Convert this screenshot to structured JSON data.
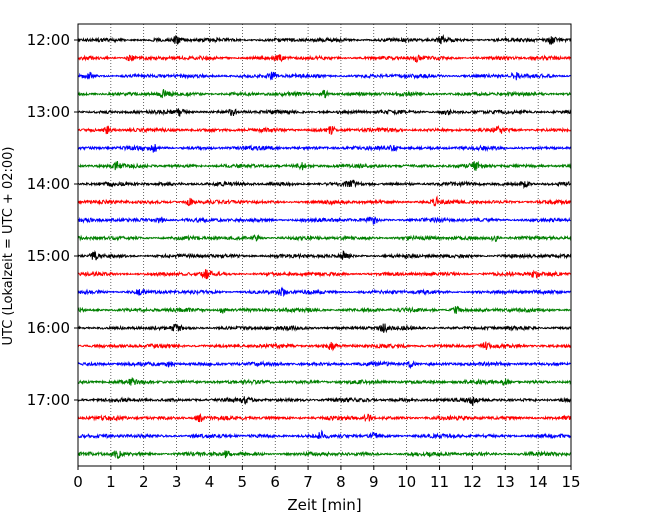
{
  "chart_data": {
    "type": "line",
    "title": "",
    "xlabel": "Zeit  [min]",
    "ylabel": "UTC (Lokalzeit = UTC + 02:00)",
    "xlim": [
      0,
      15
    ],
    "x_ticks": [
      "0",
      "1",
      "2",
      "3",
      "4",
      "5",
      "6",
      "7",
      "8",
      "9",
      "10",
      "11",
      "12",
      "13",
      "14",
      "15"
    ],
    "y_ticks": [
      "12:00",
      "13:00",
      "14:00",
      "15:00",
      "16:00",
      "17:00"
    ],
    "grid": "vertical dotted",
    "trace_interval_min": 15,
    "trace_start": "12:00",
    "trace_count": 24,
    "trace_colors": [
      "#000000",
      "#ff0000",
      "#0000ff",
      "#008000"
    ],
    "event_markers_min": [
      [
        3.0,
        11.1,
        14.4
      ],
      [
        1.6,
        6.1,
        10.3
      ],
      [
        0.4,
        5.9,
        13.3
      ],
      [
        7.5,
        2.6
      ],
      [
        3.1,
        4.7,
        11.2
      ],
      [
        0.9,
        7.7,
        12.8
      ],
      [
        2.3,
        9.6
      ],
      [
        1.2,
        6.8,
        12.1
      ],
      [
        8.3,
        13.6
      ],
      [
        3.4,
        10.9
      ],
      [
        2.5,
        9.0
      ],
      [
        5.4,
        12.7
      ],
      [
        0.5,
        8.1
      ],
      [
        3.9,
        13.9
      ],
      [
        6.2,
        1.9
      ],
      [
        11.5,
        4.4
      ],
      [
        3.0,
        9.3
      ],
      [
        7.7,
        12.4
      ],
      [
        2.8,
        10.1
      ],
      [
        1.6,
        13.0
      ],
      [
        5.1,
        12.0
      ],
      [
        8.8,
        3.7
      ],
      [
        7.4,
        9.0
      ],
      [
        1.2,
        4.5
      ]
    ]
  }
}
